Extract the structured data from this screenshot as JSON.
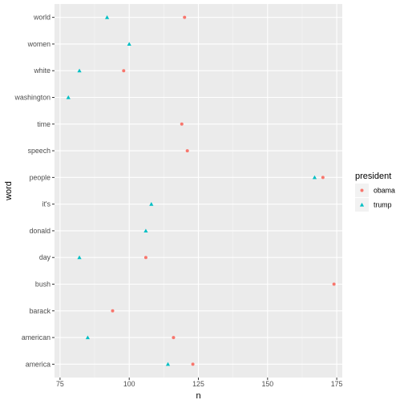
{
  "chart_data": {
    "type": "scatter",
    "xlabel": "n",
    "ylabel": "word",
    "xlim": [
      73,
      177
    ],
    "x_ticks": [
      75,
      100,
      125,
      150,
      175
    ],
    "categories": [
      "america",
      "american",
      "barack",
      "bush",
      "day",
      "donald",
      "it's",
      "people",
      "speech",
      "time",
      "washington",
      "white",
      "women",
      "world"
    ],
    "legend": {
      "title": "president",
      "position": "right"
    },
    "grid": true,
    "series": [
      {
        "name": "obama",
        "color": "#F8766D",
        "shape": "circle",
        "points": [
          {
            "word": "america",
            "n": 123
          },
          {
            "word": "american",
            "n": 116
          },
          {
            "word": "barack",
            "n": 94
          },
          {
            "word": "bush",
            "n": 174
          },
          {
            "word": "day",
            "n": 106
          },
          {
            "word": "people",
            "n": 170
          },
          {
            "word": "speech",
            "n": 121
          },
          {
            "word": "time",
            "n": 119
          },
          {
            "word": "white",
            "n": 98
          },
          {
            "word": "world",
            "n": 120
          }
        ]
      },
      {
        "name": "trump",
        "color": "#00BFC4",
        "shape": "triangle",
        "points": [
          {
            "word": "america",
            "n": 114
          },
          {
            "word": "american",
            "n": 85
          },
          {
            "word": "day",
            "n": 82
          },
          {
            "word": "donald",
            "n": 106
          },
          {
            "word": "it's",
            "n": 108
          },
          {
            "word": "people",
            "n": 167
          },
          {
            "word": "washington",
            "n": 78
          },
          {
            "word": "white",
            "n": 82
          },
          {
            "word": "women",
            "n": 100
          },
          {
            "word": "world",
            "n": 92
          }
        ]
      }
    ]
  }
}
